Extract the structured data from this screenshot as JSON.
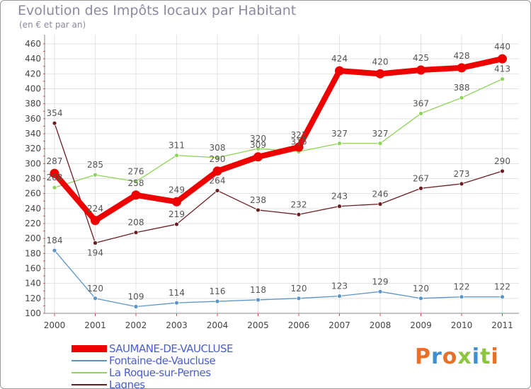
{
  "header": {
    "title": "Evolution des Impôts locaux par Habitant",
    "subtitle": "(en € et par an)"
  },
  "chart_data": {
    "type": "line",
    "title": "Evolution des Impôts locaux par Habitant",
    "subtitle": "(en € et par an)",
    "xlabel": "",
    "ylabel": "",
    "x": [
      "2000",
      "2001",
      "2002",
      "2003",
      "2004",
      "2005",
      "2006",
      "2007",
      "2008",
      "2009",
      "2010",
      "2011"
    ],
    "y_ticks": [
      "100",
      "120",
      "140",
      "160",
      "180",
      "200",
      "220",
      "240",
      "260",
      "280",
      "300",
      "320",
      "340",
      "360",
      "380",
      "400",
      "420",
      "440",
      "460"
    ],
    "ylim": [
      100,
      460
    ],
    "grid": true,
    "legend_position": "bottom-left",
    "series": [
      {
        "name": "SAUMANE-DE-VAUCLUSE",
        "color": "#ee0000",
        "values": [
          287,
          224,
          258,
          249,
          290,
          309,
          322,
          424,
          420,
          425,
          428,
          440
        ],
        "labels": [
          "287",
          "224",
          "258",
          "249",
          "290",
          "309",
          "322",
          "424",
          "420",
          "425",
          "428",
          "440"
        ]
      },
      {
        "name": "Fontaine-de-Vaucluse",
        "color": "#5b95c8",
        "values": [
          184,
          120,
          109,
          114,
          116,
          118,
          120,
          123,
          129,
          120,
          122,
          122
        ],
        "labels": [
          "184",
          "120",
          "109",
          "114",
          "116",
          "118",
          "120",
          "123",
          "129",
          "120",
          "122",
          "122"
        ]
      },
      {
        "name": "La Roque-sur-Pernes",
        "color": "#8ed458",
        "values": [
          268,
          285,
          276,
          311,
          308,
          320,
          316,
          327,
          327,
          367,
          388,
          413
        ],
        "labels": [
          "268",
          "285",
          "276",
          "311",
          "308",
          "320",
          "316",
          "327",
          "327",
          "367",
          "388",
          "413"
        ]
      },
      {
        "name": "Lagnes",
        "color": "#6b1e22",
        "values": [
          354,
          194,
          208,
          219,
          264,
          238,
          232,
          243,
          246,
          267,
          273,
          290
        ],
        "labels": [
          "354",
          "194",
          "208",
          "219",
          "264",
          "238",
          "232",
          "243",
          "246",
          "267",
          "273",
          "290"
        ]
      }
    ]
  },
  "legend": {
    "items": [
      {
        "label": "SAUMANE-DE-VAUCLUSE",
        "color": "#ee0000"
      },
      {
        "label": "Fontaine-de-Vaucluse",
        "color": "#5b95c8"
      },
      {
        "label": "La Roque-sur-Pernes",
        "color": "#8ed458"
      },
      {
        "label": "Lagnes",
        "color": "#6b1e22"
      }
    ]
  },
  "logo": {
    "letters": [
      "P",
      "r",
      "o",
      "x",
      "i",
      "t",
      "i"
    ],
    "colors": [
      "#e8712a",
      "#3d8fd1",
      "#e8712a",
      "#8cc63f",
      "#3d8fd1",
      "#8cc63f",
      "#e8712a"
    ]
  }
}
